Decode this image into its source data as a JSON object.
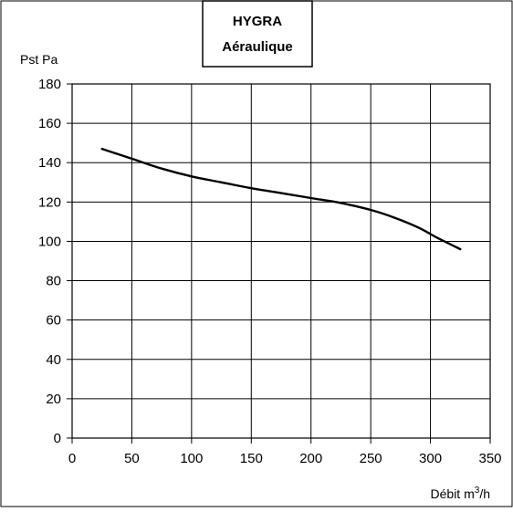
{
  "chart_data": {
    "type": "line",
    "title": [
      "HYGRA",
      "Aéraulique"
    ],
    "ylabel": "Pst Pa",
    "xlabel": {
      "text": "Débit m",
      "sup": "3",
      "suffix": "/h"
    },
    "xlim": [
      0,
      350
    ],
    "ylim": [
      0,
      180
    ],
    "xticks": [
      0,
      50,
      100,
      150,
      200,
      250,
      300,
      350
    ],
    "yticks": [
      0,
      20,
      40,
      60,
      80,
      100,
      120,
      140,
      160,
      180
    ],
    "grid": true,
    "series": [
      {
        "color": "#000000",
        "x": [
          25,
          50,
          75,
          100,
          125,
          150,
          175,
          200,
          225,
          250,
          270,
          290,
          305,
          315,
          320,
          325
        ],
        "y": [
          147,
          142,
          137,
          133,
          130,
          127,
          124.5,
          122,
          119.5,
          116,
          112,
          107,
          102,
          99,
          97.5,
          96
        ]
      }
    ]
  }
}
